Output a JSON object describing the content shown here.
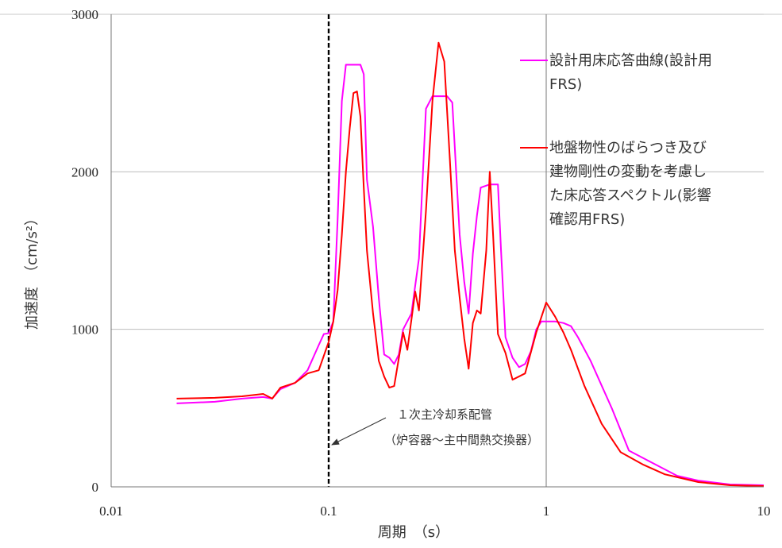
{
  "chart_data": {
    "type": "line",
    "xlabel": "周期　（s）",
    "ylabel": "加速度　（cm/s²）",
    "xscale": "log",
    "xlim": [
      0.01,
      10
    ],
    "ylim": [
      0,
      3000
    ],
    "grid": true,
    "x_ticks": [
      "0.01",
      "0.1",
      "1",
      "10"
    ],
    "y_ticks": [
      "0",
      "1000",
      "2000",
      "3000"
    ],
    "legend_position": "top-right",
    "annotation": {
      "lines": [
        "１次主冷却系配管",
        "（炉容器～主中間熱交換器）"
      ],
      "x": 0.1
    },
    "series": [
      {
        "name_lines": [
          "設計用床応答曲線(設計用",
          "FRS)"
        ],
        "color": "#ff00ff",
        "points": [
          [
            0.02,
            530
          ],
          [
            0.03,
            540
          ],
          [
            0.04,
            560
          ],
          [
            0.05,
            570
          ],
          [
            0.055,
            560
          ],
          [
            0.06,
            620
          ],
          [
            0.07,
            660
          ],
          [
            0.08,
            740
          ],
          [
            0.09,
            900
          ],
          [
            0.095,
            970
          ],
          [
            0.1,
            975
          ],
          [
            0.105,
            1050
          ],
          [
            0.11,
            1700
          ],
          [
            0.115,
            2450
          ],
          [
            0.12,
            2680
          ],
          [
            0.13,
            2680
          ],
          [
            0.14,
            2680
          ],
          [
            0.145,
            2620
          ],
          [
            0.15,
            1950
          ],
          [
            0.16,
            1650
          ],
          [
            0.17,
            1200
          ],
          [
            0.18,
            840
          ],
          [
            0.19,
            820
          ],
          [
            0.2,
            780
          ],
          [
            0.21,
            840
          ],
          [
            0.22,
            1000
          ],
          [
            0.24,
            1100
          ],
          [
            0.26,
            1450
          ],
          [
            0.28,
            2400
          ],
          [
            0.3,
            2480
          ],
          [
            0.35,
            2480
          ],
          [
            0.37,
            2440
          ],
          [
            0.4,
            1600
          ],
          [
            0.42,
            1300
          ],
          [
            0.44,
            1100
          ],
          [
            0.46,
            1480
          ],
          [
            0.48,
            1720
          ],
          [
            0.5,
            1900
          ],
          [
            0.55,
            1920
          ],
          [
            0.6,
            1920
          ],
          [
            0.62,
            1500
          ],
          [
            0.65,
            950
          ],
          [
            0.7,
            820
          ],
          [
            0.75,
            760
          ],
          [
            0.8,
            780
          ],
          [
            0.85,
            860
          ],
          [
            0.9,
            1000
          ],
          [
            0.95,
            1050
          ],
          [
            1.0,
            1050
          ],
          [
            1.1,
            1050
          ],
          [
            1.2,
            1040
          ],
          [
            1.3,
            1020
          ],
          [
            1.4,
            950
          ],
          [
            1.6,
            800
          ],
          [
            2.0,
            500
          ],
          [
            2.4,
            230
          ],
          [
            3,
            160
          ],
          [
            4,
            70
          ],
          [
            5,
            40
          ],
          [
            7,
            15
          ],
          [
            10,
            10
          ]
        ]
      },
      {
        "name_lines": [
          "地盤物性のばらつき及び",
          "建物剛性の変動を考慮し",
          "た床応答スペクトル(影響",
          "確認用FRS)"
        ],
        "color": "#ff0000",
        "points": [
          [
            0.02,
            560
          ],
          [
            0.03,
            565
          ],
          [
            0.04,
            575
          ],
          [
            0.05,
            590
          ],
          [
            0.055,
            560
          ],
          [
            0.06,
            630
          ],
          [
            0.07,
            660
          ],
          [
            0.08,
            720
          ],
          [
            0.09,
            740
          ],
          [
            0.1,
            920
          ],
          [
            0.105,
            1050
          ],
          [
            0.11,
            1250
          ],
          [
            0.115,
            1600
          ],
          [
            0.12,
            2000
          ],
          [
            0.125,
            2280
          ],
          [
            0.13,
            2500
          ],
          [
            0.135,
            2510
          ],
          [
            0.14,
            2350
          ],
          [
            0.145,
            1900
          ],
          [
            0.15,
            1500
          ],
          [
            0.16,
            1100
          ],
          [
            0.17,
            800
          ],
          [
            0.18,
            700
          ],
          [
            0.19,
            630
          ],
          [
            0.2,
            640
          ],
          [
            0.22,
            980
          ],
          [
            0.23,
            870
          ],
          [
            0.25,
            1240
          ],
          [
            0.26,
            1120
          ],
          [
            0.28,
            1750
          ],
          [
            0.3,
            2450
          ],
          [
            0.32,
            2820
          ],
          [
            0.34,
            2700
          ],
          [
            0.36,
            2100
          ],
          [
            0.38,
            1500
          ],
          [
            0.4,
            1200
          ],
          [
            0.42,
            940
          ],
          [
            0.44,
            750
          ],
          [
            0.46,
            1040
          ],
          [
            0.48,
            1120
          ],
          [
            0.5,
            1100
          ],
          [
            0.53,
            1500
          ],
          [
            0.55,
            2000
          ],
          [
            0.57,
            1600
          ],
          [
            0.6,
            970
          ],
          [
            0.65,
            850
          ],
          [
            0.7,
            680
          ],
          [
            0.8,
            720
          ],
          [
            0.9,
            980
          ],
          [
            1.0,
            1170
          ],
          [
            1.1,
            1080
          ],
          [
            1.2,
            980
          ],
          [
            1.3,
            870
          ],
          [
            1.5,
            640
          ],
          [
            1.8,
            400
          ],
          [
            2.2,
            220
          ],
          [
            2.8,
            140
          ],
          [
            3.5,
            80
          ],
          [
            5,
            30
          ],
          [
            7,
            10
          ],
          [
            10,
            5
          ]
        ]
      }
    ]
  }
}
